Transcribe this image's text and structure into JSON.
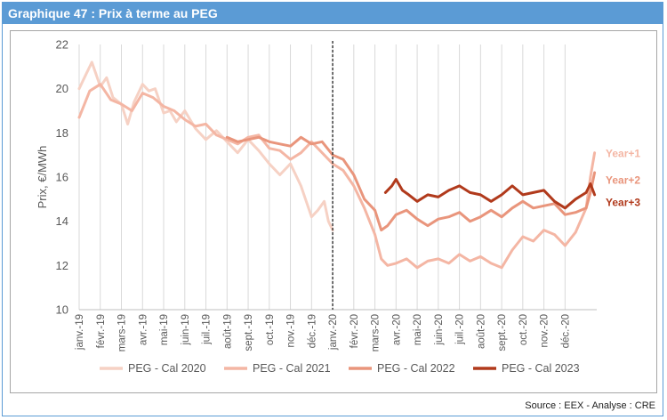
{
  "header": {
    "title": "Graphique 47 : Prix à terme au PEG"
  },
  "footer": {
    "source": "Source : EEX - Analyse : CRE"
  },
  "chart_data": {
    "type": "line",
    "title": "",
    "ylabel": "Prix, €/MWh",
    "xlabel": "",
    "ylim": [
      10,
      22
    ],
    "yticks": [
      10,
      12,
      14,
      16,
      18,
      20,
      22
    ],
    "grid": "vertical",
    "legend_position": "bottom",
    "x_tick_labels": [
      "janv.-19",
      "févr.-19",
      "mars-19",
      "avr.-19",
      "mai-19",
      "juin-19",
      "juil.-19",
      "août-19",
      "sept.-19",
      "oct.-19",
      "nov.-19",
      "déc.-19",
      "janv.-20",
      "févr.-20",
      "mars-20",
      "avr.-20",
      "mai-20",
      "juin-20",
      "juil.-20",
      "août-20",
      "sept.-20",
      "oct.-20",
      "nov.-20",
      "déc.-20"
    ],
    "x_range_months": [
      0,
      24.5
    ],
    "vertical_marker_month": 12,
    "end_labels": [
      {
        "text": "Year+1",
        "color": "#f4b6a4"
      },
      {
        "text": "Year+2",
        "color": "#e9957c"
      },
      {
        "text": "Year+3",
        "color": "#b13a1c"
      }
    ],
    "series": [
      {
        "name": "PEG - Cal 2020",
        "color": "#f6d1c4",
        "x": [
          0,
          0.3,
          0.6,
          1.0,
          1.3,
          1.6,
          2.0,
          2.3,
          2.6,
          3.0,
          3.3,
          3.6,
          4.0,
          4.3,
          4.6,
          5.0,
          5.5,
          6.0,
          6.5,
          7.0,
          7.5,
          8.0,
          8.5,
          9.0,
          9.5,
          10.0,
          10.5,
          11.0,
          11.3,
          11.6,
          11.8,
          12.0
        ],
        "values": [
          20.0,
          20.6,
          21.2,
          20.1,
          20.5,
          19.6,
          19.3,
          18.4,
          19.4,
          20.2,
          19.9,
          20.0,
          18.9,
          19.0,
          18.5,
          19.0,
          18.2,
          17.7,
          18.1,
          17.6,
          17.1,
          17.7,
          17.2,
          16.6,
          16.1,
          16.6,
          15.6,
          14.2,
          14.5,
          14.9,
          14.0,
          13.6
        ]
      },
      {
        "name": "PEG - Cal 2021",
        "color": "#f4b6a4",
        "x": [
          0,
          0.5,
          1.0,
          1.5,
          2.0,
          2.5,
          3.0,
          3.5,
          4.0,
          4.5,
          5.0,
          5.5,
          6.0,
          6.5,
          7.0,
          7.5,
          8.0,
          8.5,
          9.0,
          9.5,
          10.0,
          10.5,
          11.0,
          11.5,
          12.0,
          12.5,
          13.0,
          13.5,
          14.0,
          14.3,
          14.6,
          15.0,
          15.5,
          16.0,
          16.5,
          17.0,
          17.5,
          18.0,
          18.5,
          19.0,
          19.5,
          20.0,
          20.5,
          21.0,
          21.5,
          22.0,
          22.5,
          23.0,
          23.5,
          24.0,
          24.2,
          24.4
        ],
        "values": [
          18.7,
          19.9,
          20.2,
          19.5,
          19.3,
          19.0,
          19.8,
          19.6,
          19.2,
          19.0,
          18.6,
          18.3,
          18.4,
          17.9,
          17.7,
          17.5,
          17.8,
          17.9,
          17.3,
          17.2,
          16.8,
          17.1,
          17.6,
          17.1,
          16.6,
          16.3,
          15.6,
          14.6,
          13.4,
          12.3,
          12.0,
          12.1,
          12.3,
          11.9,
          12.2,
          12.3,
          12.1,
          12.5,
          12.2,
          12.4,
          12.1,
          11.9,
          12.7,
          13.3,
          13.1,
          13.6,
          13.4,
          12.9,
          13.5,
          14.6,
          16.0,
          17.1
        ]
      },
      {
        "name": "PEG - Cal 2022",
        "color": "#e9957c",
        "x": [
          7.0,
          7.5,
          8.0,
          8.5,
          9.0,
          9.5,
          10.0,
          10.5,
          11.0,
          11.5,
          12.0,
          12.5,
          13.0,
          13.5,
          14.0,
          14.3,
          14.6,
          15.0,
          15.5,
          16.0,
          16.5,
          17.0,
          17.5,
          18.0,
          18.5,
          19.0,
          19.5,
          20.0,
          20.5,
          21.0,
          21.5,
          22.0,
          22.5,
          23.0,
          23.5,
          24.0,
          24.2,
          24.4
        ],
        "values": [
          17.8,
          17.6,
          17.7,
          17.8,
          17.6,
          17.5,
          17.4,
          17.8,
          17.5,
          17.6,
          17.0,
          16.8,
          16.1,
          15.0,
          14.5,
          13.6,
          13.8,
          14.3,
          14.5,
          14.1,
          13.8,
          14.1,
          14.2,
          14.4,
          14.0,
          14.2,
          14.5,
          14.2,
          14.6,
          14.9,
          14.6,
          14.7,
          14.8,
          14.3,
          14.4,
          14.6,
          15.3,
          16.2
        ]
      },
      {
        "name": "PEG - Cal 2023",
        "color": "#b13a1c",
        "x": [
          14.5,
          14.8,
          15.0,
          15.3,
          15.6,
          16.0,
          16.5,
          17.0,
          17.5,
          18.0,
          18.5,
          19.0,
          19.5,
          20.0,
          20.5,
          21.0,
          21.5,
          22.0,
          22.5,
          23.0,
          23.5,
          24.0,
          24.2,
          24.4
        ],
        "values": [
          15.3,
          15.6,
          15.9,
          15.4,
          15.2,
          14.9,
          15.2,
          15.1,
          15.4,
          15.6,
          15.3,
          15.2,
          14.9,
          15.2,
          15.6,
          15.2,
          15.3,
          15.4,
          14.9,
          14.6,
          15.0,
          15.3,
          15.7,
          15.2
        ]
      }
    ]
  }
}
